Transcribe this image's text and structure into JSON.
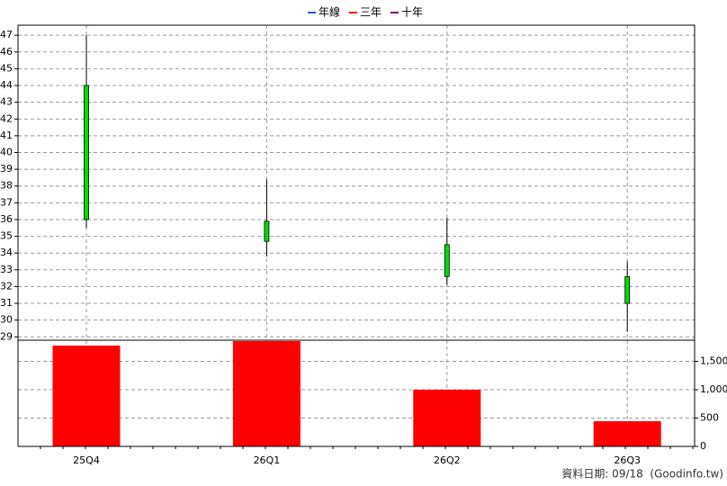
{
  "chart_data": [
    {
      "type": "candlestick",
      "open": [
        44,
        35.9,
        34.5,
        32.6
      ],
      "high": [
        47,
        38.4,
        36.1,
        33.5
      ],
      "low": [
        35.5,
        33.8,
        32.1,
        29.3
      ],
      "close": [
        36,
        34.7,
        32.6,
        31
      ],
      "color": "#00dd00",
      "legend": [
        {
          "name": "年線",
          "color": "#1f5fbf"
        },
        {
          "name": "三年",
          "color": "#ff0000"
        },
        {
          "name": "十年",
          "color": "#800080"
        }
      ],
      "ylim": [
        28.8,
        47.6
      ],
      "yticks": [
        29,
        30,
        31,
        32,
        33,
        34,
        35,
        36,
        37,
        38,
        39,
        40,
        41,
        42,
        43,
        44,
        45,
        46,
        47
      ],
      "grid": true
    },
    {
      "type": "bar",
      "categories": [
        "25Q4",
        "26Q1",
        "26Q2",
        "26Q3"
      ],
      "values": [
        1778,
        1857,
        1000,
        444
      ],
      "color": "#ff0000",
      "ylim": [
        0,
        1873
      ],
      "yticks": [
        0,
        500,
        {
          "value": 1000,
          "label": "1,000"
        },
        {
          "value": 1500,
          "label": "1,500"
        }
      ],
      "grid": true
    }
  ],
  "footer": "資料日期: 09/18  (Goodinfo.tw)"
}
